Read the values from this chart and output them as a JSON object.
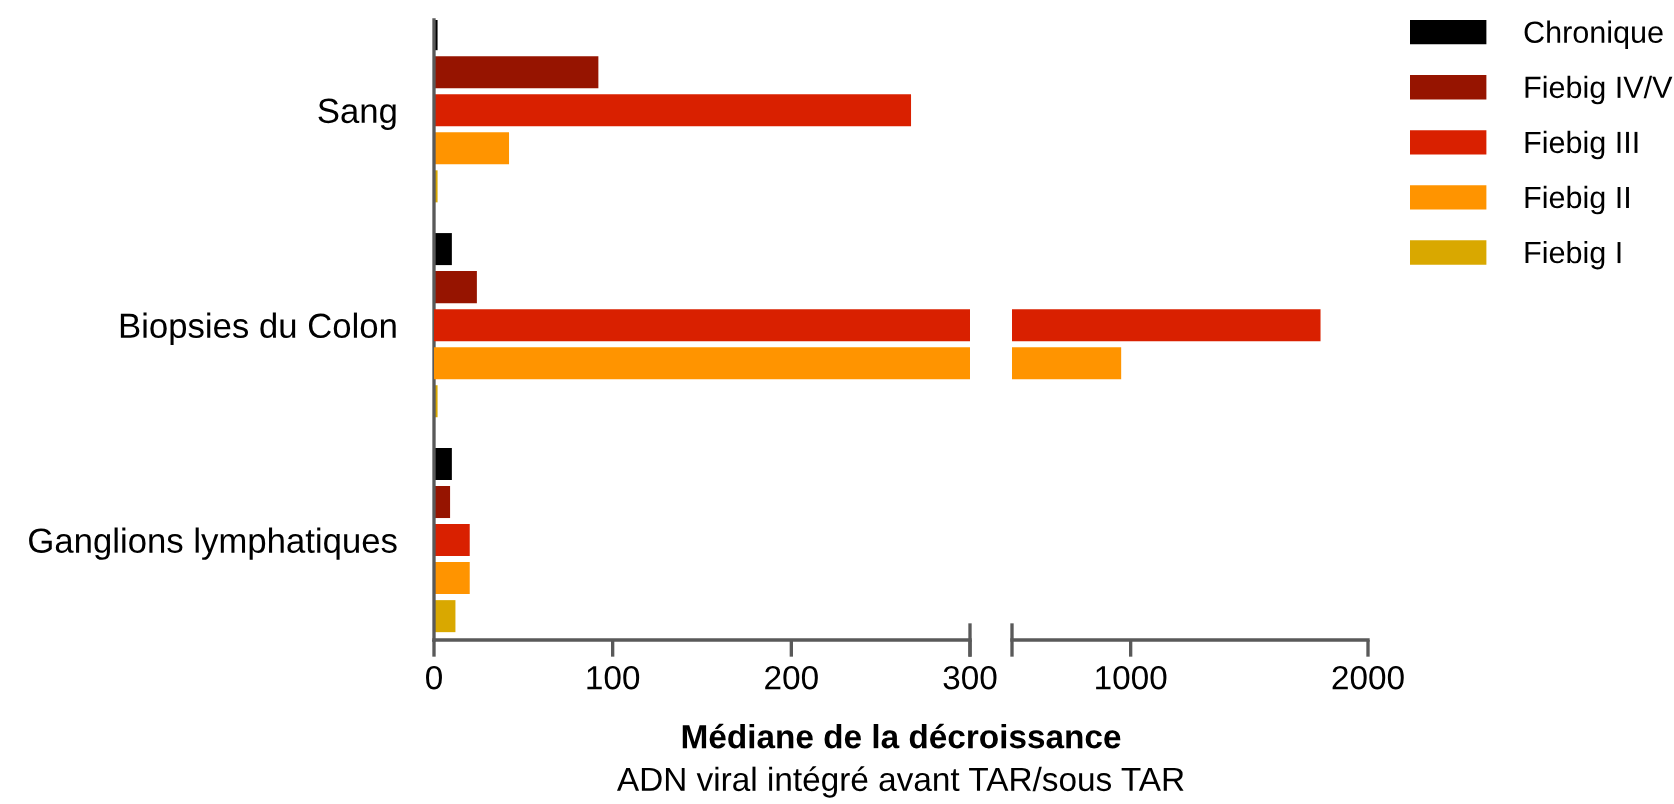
{
  "chart_data": [
    {
      "type": "bar",
      "orientation": "horizontal",
      "xlabel": "Médiane de la décroissance",
      "annotations": [
        "ADN viral intégré avant TAR/sous TAR"
      ],
      "categories": [
        "Sang",
        "Biopsies du Colon",
        "Ganglions lymphatiques"
      ],
      "series": [
        {
          "name": "Chronique",
          "color": "#000000",
          "values": [
            2,
            10,
            10
          ]
        },
        {
          "name": "Fiebig IV/V",
          "color": "#961400",
          "values": [
            92,
            24,
            9
          ]
        },
        {
          "name": "Fiebig III",
          "color": "#d92000",
          "values": [
            267,
            null,
            20
          ]
        },
        {
          "name": "Fiebig II",
          "color": "#ff9400",
          "values": [
            42,
            null,
            20
          ]
        },
        {
          "name": "Fiebig I",
          "color": "#d9a800",
          "values": [
            2,
            2,
            12
          ]
        }
      ],
      "xlim": [
        0,
        300
      ],
      "xticks": [
        0,
        100,
        200,
        300
      ],
      "grid": false,
      "legend": "top right"
    },
    {
      "type": "bar",
      "orientation": "horizontal",
      "categories": [
        null,
        null,
        null
      ],
      "series": [
        {
          "values": [
            null,
            null,
            null
          ]
        },
        {
          "values": [
            null,
            null,
            null
          ]
        },
        {
          "color": "#d92000",
          "values": [
            null,
            1800,
            null
          ]
        },
        {
          "color": "#ff9400",
          "values": [
            null,
            960,
            null
          ]
        },
        {
          "values": [
            null,
            null,
            null
          ]
        }
      ],
      "xlim": [
        500,
        2000
      ],
      "xticks": [
        1000,
        2000
      ],
      "grid": false,
      "tick_labels": "x"
    }
  ]
}
